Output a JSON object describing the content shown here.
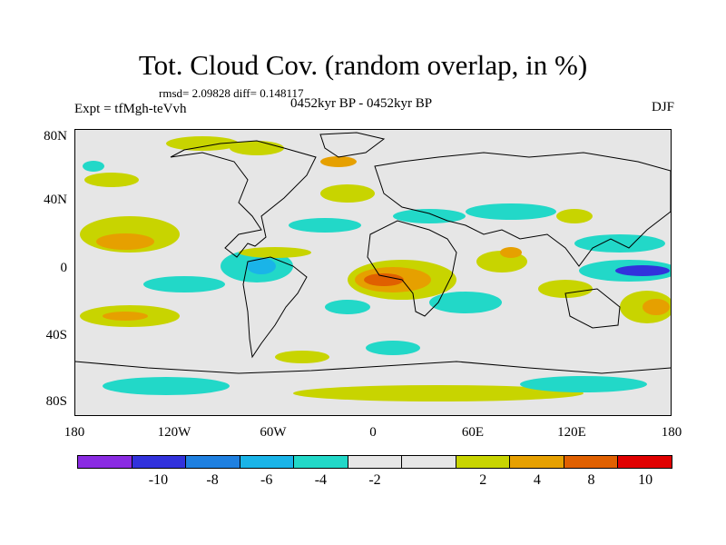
{
  "title": "Tot. Cloud Cov. (random overlap, in %)",
  "stats": "rmsd= 2.09828 diff= 0.148117",
  "expt": "Expt = tfMgh-teVvh",
  "period": "0452kyr BP - 0452kyr BP",
  "season": "DJF",
  "y_ticks": [
    "80N",
    "40N",
    "0",
    "40S",
    "80S"
  ],
  "x_ticks": [
    "180",
    "120W",
    "60W",
    "0",
    "60E",
    "120E",
    "180"
  ],
  "colorbar": {
    "colors": [
      "#8a2be2",
      "#3232dc",
      "#1f80e0",
      "#1ab4e8",
      "#22d8c8",
      "#e6e6e6",
      "#e6e6e6",
      "#c8d400",
      "#e6a000",
      "#e06000",
      "#e00000"
    ],
    "labels": [
      "-10",
      "-8",
      "-6",
      "-4",
      "-2",
      "2",
      "4",
      "8",
      "10"
    ]
  }
}
